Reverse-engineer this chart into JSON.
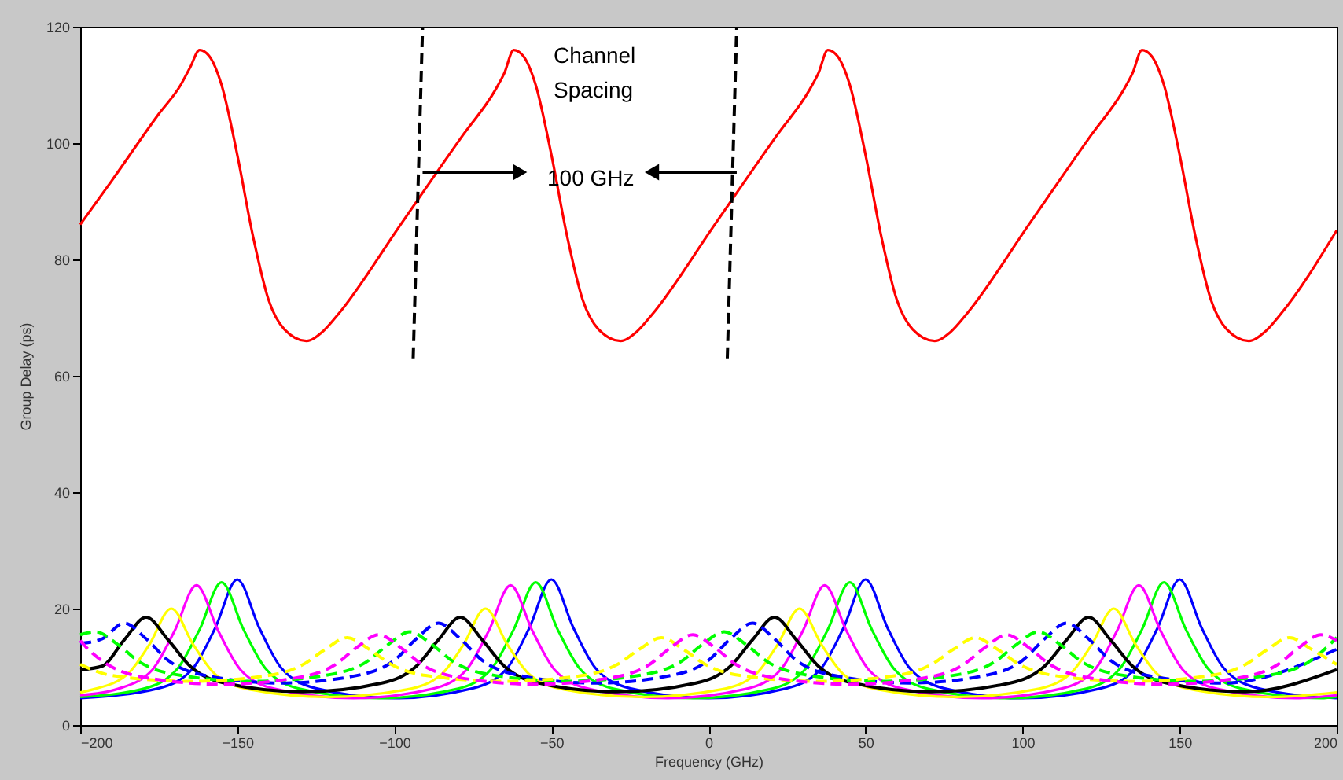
{
  "chart_data": {
    "type": "line",
    "xlabel": "Frequency (GHz)",
    "ylabel": "Group Delay (ps)",
    "xlim": [
      -200,
      200
    ],
    "xticks": [
      -200,
      -150,
      -100,
      -50,
      0,
      50,
      100,
      150,
      200
    ],
    "ylim": [
      0,
      120
    ],
    "yticks": [
      0,
      20,
      40,
      60,
      80,
      100,
      120
    ],
    "grid": false,
    "annotations": [
      "Channel\nSpacing",
      "100 GHz"
    ],
    "series": [
      {
        "color": "#ff0000",
        "line_style": "solid",
        "x": [
          -200,
          -190,
          -175,
          -168,
          -165,
          -162,
          -159,
          -155,
          -150,
          -145,
          -140,
          -135,
          -128,
          -123,
          -118,
          -98,
          -78,
          -68,
          -65,
          -62,
          -59,
          -55,
          -50,
          -45,
          -40,
          -35,
          -28,
          -23,
          -18,
          2,
          22,
          32,
          35,
          38,
          41,
          45,
          50,
          55,
          60,
          65,
          72,
          77,
          82,
          102,
          122,
          132,
          135,
          138,
          141,
          145,
          150,
          155,
          160,
          165,
          172,
          177,
          182,
          200
        ],
        "values": [
          86,
          93.5,
          105,
          110,
          113,
          116,
          115,
          110,
          98,
          84,
          73,
          68,
          66,
          67.5,
          70.5,
          86,
          101.5,
          109,
          112,
          116,
          115,
          110,
          98,
          84,
          73,
          68,
          66,
          67.5,
          70.5,
          86,
          101.5,
          109,
          112,
          116,
          115,
          110,
          98,
          84,
          73,
          68,
          66,
          67.5,
          70.5,
          86,
          101.5,
          109,
          112,
          116,
          115,
          110,
          98,
          84,
          73,
          68,
          66,
          67.5,
          70.5,
          85
        ]
      },
      {
        "color": "#0000ff",
        "line_style": "solid",
        "x": [
          -200,
          -175,
          -164,
          -157,
          -150,
          -143,
          -136,
          -125,
          -100,
          -75,
          -64,
          -57,
          -50,
          -43,
          -36,
          -25,
          0,
          25,
          36,
          43,
          50,
          57,
          64,
          75,
          100,
          125,
          136,
          143,
          150,
          157,
          164,
          175,
          200
        ],
        "values": [
          4.6,
          6.3,
          9.8,
          16.7,
          25,
          16.7,
          9.8,
          6.3,
          4.6,
          6.3,
          9.8,
          16.7,
          25,
          16.7,
          9.8,
          6.3,
          4.6,
          6.3,
          9.8,
          16.7,
          25,
          16.7,
          9.8,
          6.3,
          4.6,
          6.3,
          9.8,
          16.7,
          25,
          16.7,
          9.8,
          6.3,
          4.6
        ]
      },
      {
        "color": "#00ff00",
        "line_style": "solid",
        "x": [
          -200,
          -180,
          -169,
          -162,
          -155,
          -148,
          -141,
          -130,
          -105,
          -80,
          -69,
          -62,
          -55,
          -48,
          -41,
          -30,
          -5,
          20,
          31,
          38,
          45,
          52,
          59,
          70,
          95,
          120,
          131,
          138,
          145,
          152,
          159,
          170,
          195,
          200
        ],
        "values": [
          4.8,
          6.2,
          9.7,
          16.4,
          24.5,
          16.4,
          9.7,
          6.2,
          4.6,
          6.2,
          9.7,
          16.4,
          24.5,
          16.4,
          9.7,
          6.2,
          4.6,
          6.2,
          9.7,
          16.4,
          24.5,
          16.4,
          9.7,
          6.2,
          4.6,
          6.2,
          9.7,
          16.4,
          24.5,
          16.4,
          9.7,
          6.2,
          4.6,
          4.8
        ]
      },
      {
        "color": "#ff00ff",
        "line_style": "solid",
        "x": [
          -200,
          -188,
          -177,
          -170,
          -163,
          -156,
          -149,
          -138,
          -113,
          -88,
          -77,
          -70,
          -63,
          -56,
          -49,
          -38,
          -13,
          12,
          23,
          30,
          37,
          44,
          51,
          62,
          87,
          112,
          123,
          130,
          137,
          144,
          151,
          162,
          187,
          200
        ],
        "values": [
          5.1,
          6.2,
          9.5,
          16.1,
          24,
          16.1,
          9.5,
          6.2,
          4.6,
          6.2,
          9.5,
          16.1,
          24,
          16.1,
          9.5,
          6.2,
          4.6,
          6.2,
          9.5,
          16.1,
          24,
          16.1,
          9.5,
          6.2,
          4.6,
          6.2,
          9.5,
          16.1,
          24,
          16.1,
          9.5,
          6.2,
          4.6,
          5.1
        ]
      },
      {
        "color": "#ffff00",
        "line_style": "solid",
        "x": [
          -200,
          -196,
          -185,
          -178,
          -171,
          -164,
          -157,
          -146,
          -121,
          -96,
          -85,
          -78,
          -71,
          -64,
          -57,
          -46,
          -21,
          4,
          15,
          22,
          29,
          36,
          43,
          54,
          79,
          104,
          115,
          122,
          129,
          136,
          143,
          154,
          179,
          200
        ],
        "values": [
          5.6,
          6.1,
          8.7,
          13.8,
          20,
          13.8,
          8.7,
          6.1,
          4.8,
          6.1,
          8.7,
          13.8,
          20,
          13.8,
          8.7,
          6.1,
          4.8,
          6.1,
          8.7,
          13.8,
          20,
          13.8,
          8.7,
          6.1,
          4.8,
          6.1,
          8.7,
          13.8,
          20,
          13.8,
          8.7,
          6.1,
          4.8,
          5.6
        ]
      },
      {
        "color": "#000000",
        "line_style": "solid",
        "x": [
          -200,
          -193,
          -186,
          -179,
          -172,
          -165,
          -154,
          -129,
          -104,
          -93,
          -86,
          -79,
          -72,
          -65,
          -54,
          -29,
          -4,
          7,
          14,
          21,
          28,
          35,
          46,
          71,
          96,
          107,
          114,
          121,
          128,
          135,
          146,
          171,
          200
        ],
        "values": [
          9.5,
          10.1,
          14.6,
          18.5,
          14.6,
          10.1,
          7.2,
          5.7,
          7.2,
          10.1,
          14.6,
          18.5,
          14.6,
          10.1,
          7.2,
          5.7,
          7.2,
          10.1,
          14.6,
          18.5,
          14.6,
          10.1,
          7.2,
          5.7,
          7.2,
          10.1,
          14.6,
          18.5,
          14.6,
          10.1,
          7.2,
          5.7,
          9.5
        ]
      },
      {
        "color": "#0000ff",
        "line_style": "dashed",
        "x": [
          -200,
          -193,
          -186,
          -179,
          -172,
          -161,
          -136,
          -111,
          -100,
          -93,
          -86,
          -79,
          -72,
          -61,
          -36,
          -11,
          0,
          7,
          14,
          21,
          28,
          39,
          64,
          89,
          100,
          107,
          114,
          121,
          128,
          139,
          164,
          200
        ],
        "values": [
          14,
          14.8,
          17.5,
          14.8,
          11.1,
          8.6,
          7.2,
          8.6,
          11.1,
          14.8,
          17.5,
          14.8,
          11.1,
          8.6,
          7.2,
          8.6,
          11.1,
          14.8,
          17.5,
          14.8,
          11.1,
          8.6,
          7.2,
          8.6,
          11.1,
          14.8,
          17.5,
          14.8,
          11.1,
          8.6,
          7.2,
          13
        ]
      },
      {
        "color": "#00ff00",
        "line_style": "dashed",
        "x": [
          -200,
          -195,
          -188,
          -181,
          -170,
          -145,
          -120,
          -109,
          -102,
          -95,
          -88,
          -81,
          -70,
          -45,
          -20,
          -9,
          -2,
          5,
          12,
          19,
          30,
          55,
          80,
          91,
          98,
          105,
          112,
          119,
          130,
          155,
          180,
          191,
          200
        ],
        "values": [
          15.5,
          16,
          13.8,
          10.8,
          8.7,
          7.5,
          8.7,
          10.8,
          13.8,
          16,
          13.8,
          10.8,
          8.7,
          7.5,
          8.7,
          10.8,
          13.8,
          16,
          13.8,
          10.8,
          8.7,
          7.5,
          8.7,
          10.8,
          13.8,
          16,
          13.8,
          10.8,
          8.7,
          7.5,
          8.7,
          10.8,
          15
        ]
      },
      {
        "color": "#ffff00",
        "line_style": "dashed",
        "x": [
          -200,
          -190,
          -165,
          -140,
          -129,
          -122,
          -115,
          -108,
          -101,
          -90,
          -65,
          -40,
          -29,
          -22,
          -15,
          -8,
          -1,
          10,
          35,
          60,
          71,
          78,
          85,
          92,
          99,
          110,
          135,
          160,
          171,
          178,
          185,
          192,
          200
        ],
        "values": [
          10.4,
          8.5,
          7.5,
          8.5,
          10.4,
          13,
          15,
          13,
          10.4,
          8.5,
          7.5,
          8.5,
          10.4,
          13,
          15,
          13,
          10.4,
          8.5,
          7.5,
          8.5,
          10.4,
          13,
          15,
          13,
          10.4,
          8.5,
          7.5,
          8.5,
          10.4,
          13,
          15,
          13,
          10.4
        ]
      },
      {
        "color": "#ff00ff",
        "line_style": "dashed",
        "x": [
          -200,
          -198,
          -191,
          -180,
          -155,
          -130,
          -119,
          -112,
          -105,
          -98,
          -91,
          -80,
          -55,
          -30,
          -19,
          -12,
          -5,
          2,
          9,
          20,
          45,
          70,
          81,
          88,
          95,
          102,
          109,
          120,
          145,
          170,
          181,
          188,
          195,
          200
        ],
        "values": [
          14.5,
          13.3,
          10.3,
          8.2,
          7,
          8.2,
          10.3,
          13.3,
          15.5,
          13.3,
          10.3,
          8.2,
          7,
          8.2,
          10.3,
          13.3,
          15.5,
          13.3,
          10.3,
          8.2,
          7,
          8.2,
          10.3,
          13.3,
          15.5,
          13.3,
          10.3,
          8.2,
          7,
          8.2,
          10.3,
          13.3,
          15.5,
          14.5
        ]
      },
      {
        "color": "#000000",
        "line_style": "dashed",
        "x": [
          -94,
          -91
        ],
        "values": [
          63,
          120
        ]
      },
      {
        "color": "#000000",
        "line_style": "dashed",
        "x": [
          6,
          9
        ],
        "values": [
          63,
          120
        ]
      },
      {
        "color": "#000000",
        "line_style": "solid",
        "marker": "triangle",
        "x": [
          -91,
          -60
        ],
        "values": [
          95,
          95
        ]
      },
      {
        "color": "#000000",
        "line_style": "solid",
        "marker": "triangle",
        "x": [
          9,
          -18
        ],
        "values": [
          95,
          95
        ]
      }
    ]
  }
}
